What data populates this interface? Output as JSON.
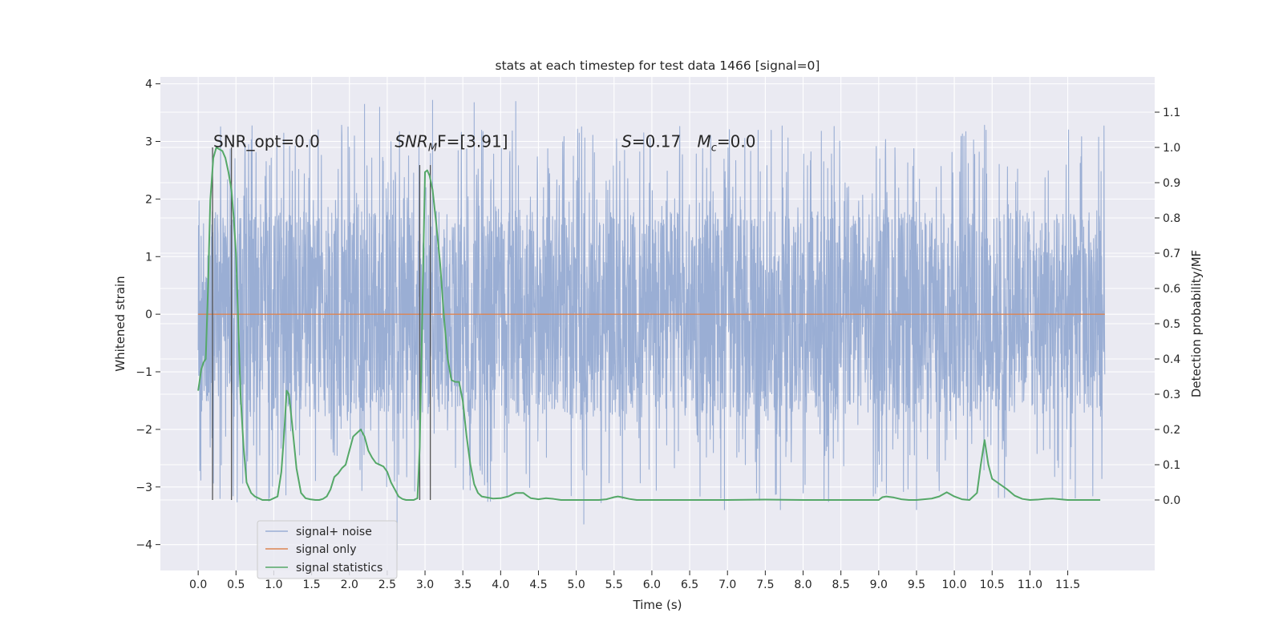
{
  "chart_data": {
    "type": "line",
    "title": "stats at each timestep for test data 1466 [signal=0]",
    "xlabel": "Time (s)",
    "ylabel": "Whitened strain",
    "y2label": "Detection probability/MF",
    "xlim": [
      -0.5,
      12.65
    ],
    "ylim": [
      -4.45,
      4.12
    ],
    "y2lim": [
      -0.2,
      1.2
    ],
    "x_ticks": [
      0.0,
      0.5,
      1.0,
      1.5,
      2.0,
      2.5,
      3.0,
      3.5,
      4.0,
      4.5,
      5.0,
      5.5,
      6.0,
      6.5,
      7.0,
      7.5,
      8.0,
      8.5,
      9.0,
      9.5,
      10.0,
      10.5,
      11.0,
      11.5
    ],
    "x_tick_labels": [
      "0.0",
      "0.5",
      "1.0",
      "1.5",
      "2.0",
      "2.5",
      "3.0",
      "3.5",
      "4.0",
      "4.5",
      "5.0",
      "5.5",
      "6.0",
      "6.5",
      "7.0",
      "7.5",
      "8.0",
      "8.5",
      "9.0",
      "9.5",
      "10.0",
      "10.5",
      "11.0",
      "11.5"
    ],
    "y_ticks": [
      -4,
      -3,
      -2,
      -1,
      0,
      1,
      2,
      3,
      4
    ],
    "y_tick_labels": [
      "−4",
      "−3",
      "−2",
      "−1",
      "0",
      "1",
      "2",
      "3",
      "4"
    ],
    "y2_ticks": [
      0.0,
      0.1,
      0.2,
      0.3,
      0.4,
      0.5,
      0.6,
      0.7,
      0.8,
      0.9,
      1.0,
      1.1
    ],
    "y2_tick_labels": [
      "0.0",
      "0.1",
      "0.2",
      "0.3",
      "0.4",
      "0.5",
      "0.6",
      "0.7",
      "0.8",
      "0.9",
      "1.0",
      "1.1"
    ],
    "grid": true,
    "legend_position": "lower-left",
    "colors": {
      "plot_bg": "#eaeaf2",
      "grid": "#ffffff",
      "noise": "#9aaed4",
      "signal_only": "#dd8452",
      "statistics": "#55a868",
      "marker": "#555555"
    },
    "annotations": [
      {
        "prefix": "SNR_opt=0.0",
        "italic": "",
        "sub": "",
        "suffix": "",
        "x": 0.2,
        "y": 3.0
      },
      {
        "prefix": "",
        "italic": "SNR",
        "sub": "M",
        "suffix": "F=[3.91]",
        "x": 2.6,
        "y": 3.0
      },
      {
        "prefix": "",
        "italic": "S",
        "sub": "",
        "suffix": "=0.17   ",
        "x": 5.6,
        "y": 3.0
      },
      {
        "prefix": "",
        "italic": "M",
        "sub": "c",
        "suffix": "=0.0",
        "x": 6.6,
        "y": 3.0
      }
    ],
    "vertical_lines": [
      {
        "x": 0.19,
        "y_top": 1.0
      },
      {
        "x": 0.44,
        "y_top": 1.0
      },
      {
        "x": 2.93,
        "y_top": 0.95
      },
      {
        "x": 3.07,
        "y_top": 0.95
      }
    ],
    "series": [
      {
        "name": "signal+ noise",
        "axis": "left",
        "kind": "noise",
        "x_range": [
          0.0,
          11.99
        ],
        "envelope": {
          "typical": 1.65,
          "spike_max": 3.75,
          "min": -4.1
        },
        "peaks": [
          {
            "x": 2.2,
            "y": 3.65
          },
          {
            "x": 2.4,
            "y": 3.6
          },
          {
            "x": 2.63,
            "y": -4.1
          },
          {
            "x": 3.1,
            "y": 3.72
          },
          {
            "x": 3.65,
            "y": 3.68
          },
          {
            "x": 4.2,
            "y": 3.7
          },
          {
            "x": 5.1,
            "y": -3.65
          },
          {
            "x": 6.96,
            "y": -3.4
          },
          {
            "x": 7.7,
            "y": -3.4
          },
          {
            "x": 9.5,
            "y": -3.4
          },
          {
            "x": 10.42,
            "y": 3.2
          },
          {
            "x": 11.6,
            "y": -3.2
          }
        ]
      },
      {
        "name": "signal only",
        "axis": "left",
        "kind": "line",
        "x": [
          0.0,
          11.99
        ],
        "y": [
          0.0,
          0.0
        ]
      },
      {
        "name": "signal statistics",
        "axis": "right",
        "kind": "line",
        "x": [
          0.0,
          0.04,
          0.07,
          0.1,
          0.13,
          0.16,
          0.2,
          0.24,
          0.28,
          0.32,
          0.36,
          0.4,
          0.44,
          0.47,
          0.5,
          0.53,
          0.56,
          0.6,
          0.64,
          0.7,
          0.75,
          0.8,
          0.85,
          0.9,
          0.95,
          1.0,
          1.05,
          1.1,
          1.14,
          1.17,
          1.2,
          1.24,
          1.3,
          1.36,
          1.42,
          1.48,
          1.55,
          1.6,
          1.65,
          1.7,
          1.75,
          1.8,
          1.85,
          1.9,
          1.95,
          2.0,
          2.05,
          2.1,
          2.15,
          2.2,
          2.25,
          2.3,
          2.35,
          2.4,
          2.45,
          2.5,
          2.55,
          2.6,
          2.65,
          2.7,
          2.75,
          2.8,
          2.85,
          2.9,
          2.93,
          2.97,
          3.0,
          3.03,
          3.06,
          3.1,
          3.15,
          3.2,
          3.25,
          3.3,
          3.35,
          3.4,
          3.45,
          3.5,
          3.55,
          3.6,
          3.65,
          3.7,
          3.75,
          3.8,
          3.85,
          3.9,
          4.0,
          4.1,
          4.2,
          4.3,
          4.35,
          4.4,
          4.5,
          4.6,
          4.7,
          4.8,
          4.9,
          5.0,
          5.1,
          5.2,
          5.3,
          5.4,
          5.5,
          5.55,
          5.6,
          5.7,
          5.8,
          6.0,
          6.5,
          7.0,
          7.5,
          8.0,
          8.5,
          9.0,
          9.05,
          9.1,
          9.2,
          9.3,
          9.4,
          9.5,
          9.6,
          9.7,
          9.8,
          9.9,
          10.0,
          10.1,
          10.2,
          10.3,
          10.35,
          10.4,
          10.45,
          10.5,
          10.6,
          10.7,
          10.8,
          10.9,
          11.0,
          11.1,
          11.2,
          11.3,
          11.4,
          11.5,
          11.6,
          11.7,
          11.8,
          11.93
        ],
        "y": [
          0.31,
          0.37,
          0.39,
          0.4,
          0.6,
          0.85,
          0.97,
          1.0,
          0.995,
          0.99,
          0.97,
          0.93,
          0.88,
          0.8,
          0.7,
          0.5,
          0.3,
          0.15,
          0.05,
          0.02,
          0.01,
          0.005,
          0.0,
          0.0,
          0.0,
          0.005,
          0.01,
          0.08,
          0.2,
          0.31,
          0.3,
          0.22,
          0.09,
          0.02,
          0.005,
          0.002,
          0.0,
          0.0,
          0.003,
          0.01,
          0.03,
          0.065,
          0.075,
          0.09,
          0.1,
          0.14,
          0.18,
          0.19,
          0.2,
          0.18,
          0.14,
          0.12,
          0.105,
          0.1,
          0.095,
          0.08,
          0.05,
          0.03,
          0.01,
          0.003,
          0.0,
          0.0,
          0.0,
          0.005,
          0.15,
          0.6,
          0.93,
          0.935,
          0.92,
          0.88,
          0.78,
          0.67,
          0.52,
          0.4,
          0.34,
          0.335,
          0.335,
          0.28,
          0.18,
          0.1,
          0.045,
          0.02,
          0.01,
          0.008,
          0.006,
          0.004,
          0.005,
          0.01,
          0.02,
          0.02,
          0.012,
          0.005,
          0.002,
          0.005,
          0.003,
          0.0,
          0.0,
          0.0,
          0.0,
          0.0,
          0.0,
          0.002,
          0.008,
          0.01,
          0.008,
          0.003,
          0.0,
          0.0,
          0.0,
          0.0,
          0.001,
          0.0,
          0.0,
          0.0,
          0.008,
          0.01,
          0.007,
          0.002,
          0.0,
          0.0,
          0.002,
          0.004,
          0.01,
          0.022,
          0.01,
          0.002,
          0.0,
          0.02,
          0.1,
          0.17,
          0.1,
          0.06,
          0.045,
          0.03,
          0.012,
          0.003,
          0.0,
          0.001,
          0.003,
          0.004,
          0.002,
          0.0,
          0.0,
          0.0,
          0.0,
          0.0
        ]
      }
    ]
  }
}
